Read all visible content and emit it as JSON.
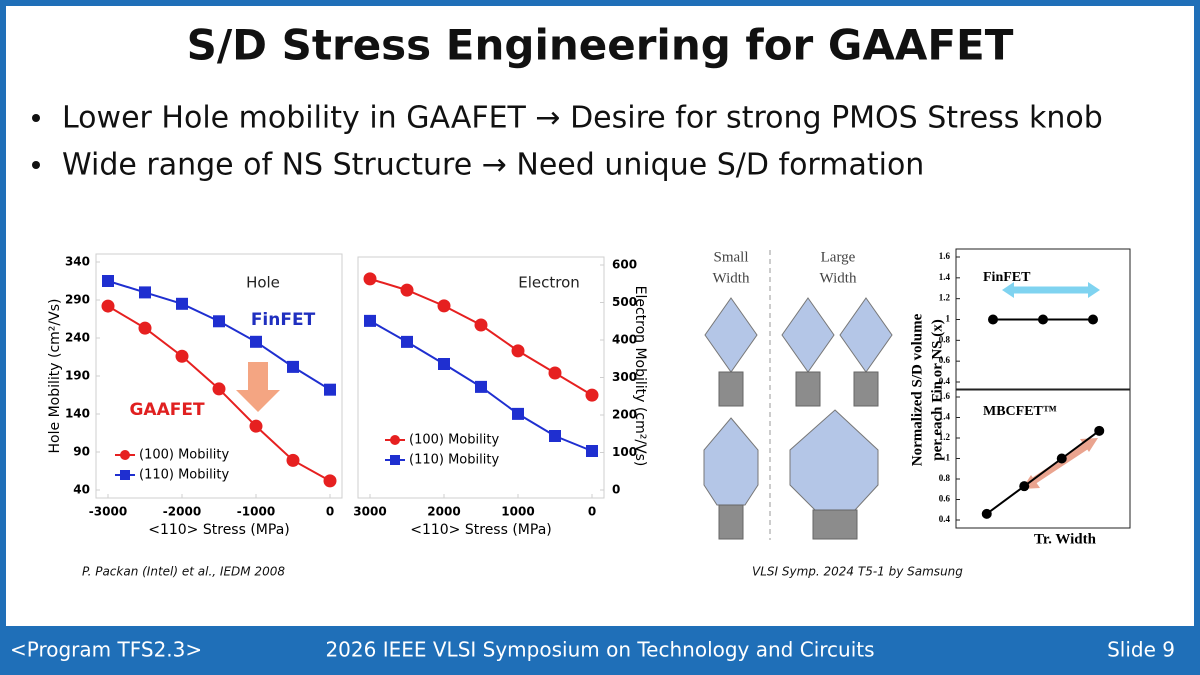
{
  "slide": {
    "title": "S/D Stress Engineering for GAAFET",
    "bullets": [
      "Lower Hole mobility in GAAFET → Desire for strong PMOS Stress knob",
      "Wide range of NS Structure → Need unique S/D formation"
    ],
    "citations": [
      "P. Packan (Intel) et al., IEDM 2008",
      "VLSI Symp. 2024 T5-1 by Samsung"
    ],
    "diagram": {
      "labels": [
        [
          "Small",
          "Width"
        ],
        [
          "Large",
          "Width"
        ]
      ]
    },
    "footer": {
      "left": "<Program TFS2.3>",
      "center": "2026 IEEE VLSI Symposium on Technology and Circuits",
      "right": "Slide 9"
    }
  },
  "chart_data": [
    {
      "type": "line",
      "x": [
        -3000,
        -2500,
        -2000,
        -1500,
        -1000,
        -500,
        0
      ],
      "xlim": [
        -3000,
        0
      ],
      "xticks": [
        -3000,
        -2000,
        -1000,
        0
      ],
      "ylim": [
        40,
        340
      ],
      "yticks": [
        40,
        90,
        140,
        190,
        240,
        290,
        340
      ],
      "xlabel": "<110> Stress (MPa)",
      "ylabel": "Hole Mobility (cm²/Vs)",
      "legend": "lower left",
      "frame": true,
      "annotations": [
        {
          "text": "Hole",
          "color": "#222222"
        },
        {
          "text": "FinFET",
          "color": "#1f2fbf"
        },
        {
          "text": "GAAFET",
          "color": "#e02020"
        }
      ],
      "series": [
        {
          "name": "(100) Mobility",
          "color": "#e62020",
          "marker": "circle",
          "values": [
            282,
            253,
            216,
            173,
            124,
            79,
            52
          ]
        },
        {
          "name": "(110) Mobility",
          "color": "#1f2fd0",
          "marker": "square",
          "values": [
            315,
            300,
            285,
            262,
            235,
            202,
            172
          ]
        }
      ]
    },
    {
      "type": "line",
      "x": [
        3000,
        2500,
        2000,
        1500,
        1000,
        500,
        0
      ],
      "xlim": [
        3000,
        0
      ],
      "xticks": [
        3000,
        2000,
        1000,
        0
      ],
      "y2lim": [
        0,
        600
      ],
      "y2ticks": [
        0,
        100,
        200,
        300,
        400,
        500,
        600
      ],
      "xlabel": "<110> Stress (MPa)",
      "y2label": "Electron Mobility (cm²/Vs)",
      "legend": "lower left",
      "frame": true,
      "annotations": [
        {
          "text": "Electron",
          "color": "#222222"
        }
      ],
      "series": [
        {
          "name": "(100) Mobility",
          "color": "#e62020",
          "marker": "circle",
          "axis": "y2",
          "values": [
            563,
            533,
            491,
            440,
            371,
            312,
            253
          ]
        },
        {
          "name": "(110) Mobility",
          "color": "#1f2fd0",
          "marker": "square",
          "axis": "y2",
          "values": [
            451,
            395,
            336,
            275,
            203,
            144,
            104
          ]
        }
      ]
    },
    {
      "type": "line",
      "title": "FinFET",
      "categories": [
        null,
        null,
        null
      ],
      "ylim": [
        0.4,
        1.6
      ],
      "yticks": [
        0.4,
        0.6,
        0.8,
        1,
        1.2,
        1.4,
        1.6
      ],
      "ylabel": [
        "Normalized S/D volume",
        "per each Fin or NS (x)"
      ],
      "frame": true,
      "series": [
        {
          "color": "#000000",
          "marker": "circle",
          "values": [
            1,
            1,
            1
          ]
        }
      ]
    },
    {
      "type": "line",
      "title": "MBCFET™",
      "categories": [
        null,
        null,
        null,
        null
      ],
      "ylim": [
        0.4,
        1.6
      ],
      "yticks": [
        0.4,
        0.6,
        0.8,
        1,
        1.2,
        1.4,
        1.6
      ],
      "xlabel": "Tr. Width",
      "frame": true,
      "series": [
        {
          "color": "#000000",
          "marker": "circle",
          "values": [
            0.46,
            0.73,
            1.0,
            1.27
          ]
        }
      ]
    }
  ]
}
